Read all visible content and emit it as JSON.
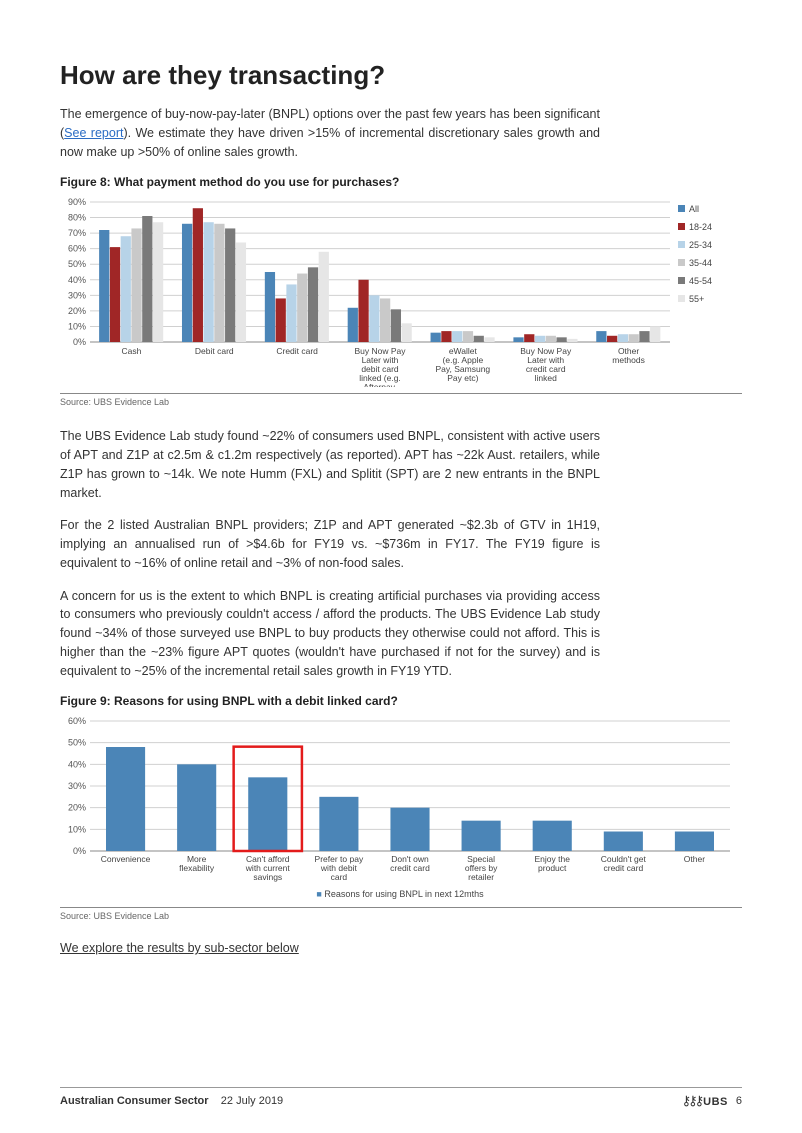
{
  "heading": "How are they transacting?",
  "intro": {
    "pre": "The emergence of buy-now-pay-later (BNPL) options over the past few years has been significant (",
    "link": "See report",
    "post": "). We estimate they have driven >15% of incremental discretionary sales growth and now make up >50% of online sales growth."
  },
  "figure8": {
    "title": "Figure 8: What payment method do you use for purchases?",
    "type": "grouped-bar",
    "y": {
      "min": 0,
      "max": 90,
      "step": 10,
      "suffix": "%"
    },
    "categories": [
      "Cash",
      "Debit card",
      "Credit card",
      "Buy Now Pay Later with debit card linked (e.g. Afterpay, Zip)",
      "eWallet (e.g. Apple Pay, Samsung Pay etc)",
      "Buy Now Pay Later with credit card linked",
      "Other methods"
    ],
    "series": [
      {
        "name": "All",
        "color": "#4b85b7",
        "values": [
          72,
          76,
          45,
          22,
          6,
          3,
          7
        ]
      },
      {
        "name": "18-24",
        "color": "#a02626",
        "values": [
          61,
          86,
          28,
          40,
          7,
          5,
          4
        ]
      },
      {
        "name": "25-34",
        "color": "#b7d3e8",
        "values": [
          68,
          77,
          37,
          30,
          7,
          4,
          5
        ]
      },
      {
        "name": "35-44",
        "color": "#c9c9c9",
        "values": [
          73,
          76,
          44,
          28,
          7,
          4,
          5
        ]
      },
      {
        "name": "45-54",
        "color": "#7a7a7a",
        "values": [
          81,
          73,
          48,
          21,
          4,
          3,
          7
        ]
      },
      {
        "name": "55+",
        "color": "#e6e6e6",
        "values": [
          77,
          64,
          58,
          12,
          3,
          2,
          10
        ]
      }
    ],
    "legend_marker": "■",
    "background": "#ffffff",
    "grid_color": "#d0d0d0",
    "font_size": 9,
    "source": "Source:  UBS Evidence Lab"
  },
  "para2": "The UBS Evidence Lab study found ~22% of consumers used BNPL, consistent with active users of APT and Z1P at c2.5m & c1.2m respectively (as reported). APT has ~22k Aust. retailers, while Z1P has grown to ~14k. We note Humm (FXL) and Splitit (SPT) are 2 new entrants in the BNPL market.",
  "para3": "For the 2 listed Australian BNPL providers; Z1P and APT generated ~$2.3b of GTV in 1H19, implying an annualised run of >$4.6b for FY19 vs. ~$736m in FY17. The FY19 figure is equivalent to ~16% of online retail and ~3% of non-food sales.",
  "para4": "A concern for us is the extent to which BNPL is creating artificial purchases via providing access to consumers who previously couldn't access / afford the products. The UBS Evidence Lab study found ~34% of those surveyed use BNPL to buy products they otherwise could not afford. This is higher than the ~23% figure APT quotes (wouldn't have purchased if not for the survey) and is equivalent to ~25% of the incremental retail sales growth in FY19 YTD.",
  "figure9": {
    "title": "Figure 9: Reasons for using BNPL with a debit linked card?",
    "type": "bar",
    "y": {
      "min": 0,
      "max": 60,
      "step": 10,
      "suffix": "%"
    },
    "categories": [
      "Convenience",
      "More flexability",
      "Can't afford with current savings",
      "Prefer to pay with debit card",
      "Don't own credit card",
      "Special offers by retailer",
      "Enjoy the product",
      "Couldn't get credit card",
      "Other"
    ],
    "values": [
      48,
      40,
      34,
      25,
      20,
      14,
      14,
      9,
      9
    ],
    "bar_color": "#4b85b7",
    "highlight_index": 2,
    "highlight_color": "#e31b1b",
    "legend_label": "Reasons for using BNPL in next 12mths",
    "legend_marker": "■",
    "background": "#ffffff",
    "grid_color": "#d0d0d0",
    "font_size": 9,
    "source": "Source:  UBS Evidence Lab"
  },
  "sublink": "We explore the results by sub-sector below",
  "footer": {
    "title": "Australian Consumer Sector",
    "date": "22 July 2019",
    "brand": "UBS",
    "page": "6"
  }
}
